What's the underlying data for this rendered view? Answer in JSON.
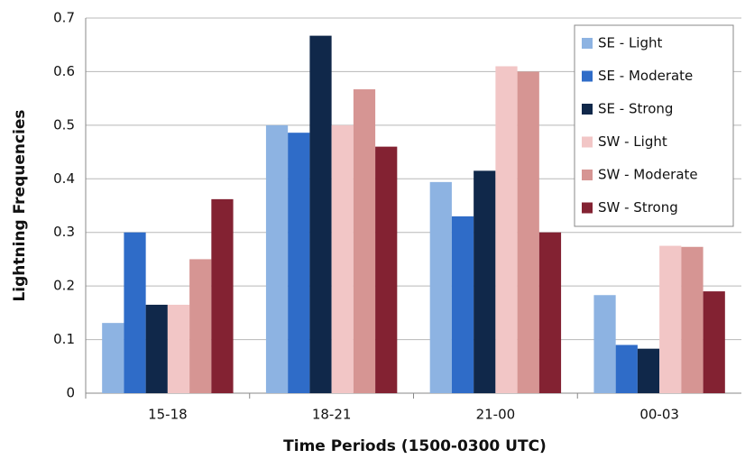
{
  "chart_data": {
    "type": "bar",
    "x_label": "Time Periods (1500-0300 UTC)",
    "y_label": "Lightning Frequencies",
    "categories": [
      "15-18",
      "18-21",
      "21-00",
      "00-03"
    ],
    "series": [
      {
        "name": "SE - Light",
        "color": "#8db3e2",
        "values": [
          0.131,
          0.5,
          0.394,
          0.183
        ]
      },
      {
        "name": "SE - Moderate",
        "color": "#2f6cc8",
        "values": [
          0.3,
          0.486,
          0.33,
          0.09
        ]
      },
      {
        "name": "SE - Strong",
        "color": "#10284a",
        "values": [
          0.165,
          0.667,
          0.415,
          0.083
        ]
      },
      {
        "name": "SW - Light",
        "color": "#f2c6c6",
        "values": [
          0.165,
          0.5,
          0.61,
          0.275
        ]
      },
      {
        "name": "SW - Moderate",
        "color": "#d69593",
        "values": [
          0.25,
          0.567,
          0.6,
          0.273
        ]
      },
      {
        "name": "SW - Strong",
        "color": "#832232",
        "values": [
          0.362,
          0.46,
          0.3,
          0.19
        ]
      }
    ],
    "ylim": [
      0,
      0.7
    ],
    "yticks": [
      0,
      0.1,
      0.2,
      0.3,
      0.4,
      0.5,
      0.6,
      0.7
    ],
    "grid": true,
    "legend": "upper right"
  }
}
